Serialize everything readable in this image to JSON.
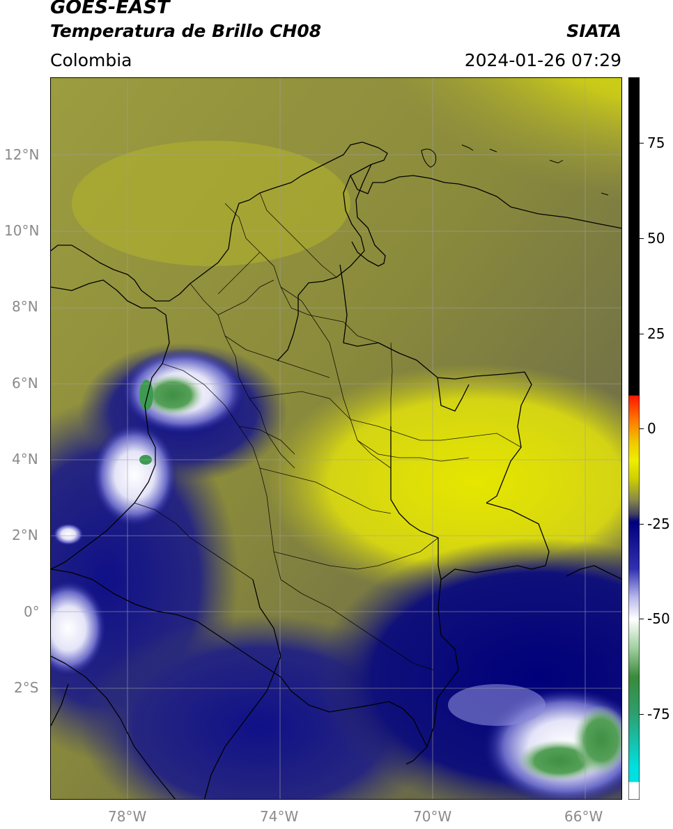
{
  "header": {
    "title": "GOES-EAST",
    "subtitle": "Temperatura de Brillo CH08",
    "brand": "SIATA",
    "region": "Colombia",
    "timestamp": "2024-01-26 07:29"
  },
  "map": {
    "lat_labels": [
      "12°N",
      "10°N",
      "8°N",
      "6°N",
      "4°N",
      "2°N",
      "0°",
      "2°S"
    ],
    "lon_labels": [
      "78°W",
      "74°W",
      "70°W",
      "66°W"
    ]
  },
  "colorbar": {
    "tick_labels": [
      "75",
      "50",
      "25",
      "0",
      "-25",
      "-50",
      "-75"
    ],
    "stops": [
      {
        "value": 90,
        "color": "#000000"
      },
      {
        "value": 8,
        "color": "#000000"
      },
      {
        "value": 7.9,
        "color": "#ff2000"
      },
      {
        "value": 0,
        "color": "#ff8c00"
      },
      {
        "value": -8,
        "color": "#f0e800"
      },
      {
        "value": -17,
        "color": "#e6e600"
      },
      {
        "value": -20,
        "color": "#8a8a40"
      },
      {
        "value": -25,
        "color": "#404058"
      },
      {
        "value": -27,
        "color": "#00007e"
      },
      {
        "value": -38,
        "color": "#2a2aa8"
      },
      {
        "value": -45,
        "color": "#aaaaee"
      },
      {
        "value": -50,
        "color": "#ffffff"
      },
      {
        "value": -58,
        "color": "#9ccc9c"
      },
      {
        "value": -66,
        "color": "#3a8a3a"
      },
      {
        "value": -75,
        "color": "#2e9e6e"
      },
      {
        "value": -85,
        "color": "#00e6e6"
      },
      {
        "value": -87,
        "color": "#ffffff"
      },
      {
        "value": -90,
        "color": "#ffffff"
      }
    ]
  },
  "colors": {
    "cold_top_white": "#ffffff",
    "cold_top_green": "#3a9a4a",
    "deep_blue": "#000080",
    "olive": "#85853a",
    "yellow": "#e8e800",
    "border_line": "#000000"
  }
}
